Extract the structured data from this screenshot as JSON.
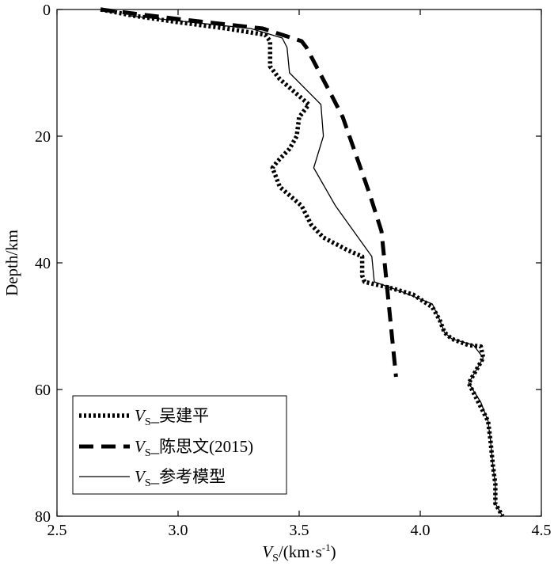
{
  "chart_data": {
    "type": "line",
    "orientation": "profile",
    "xlim": [
      2.5,
      4.5
    ],
    "ylim": [
      0,
      80
    ],
    "y_inverted": true,
    "x_ticks": [
      "2.5",
      "3.0",
      "3.5",
      "4.0",
      "4.5"
    ],
    "y_ticks": [
      "0",
      "20",
      "40",
      "60",
      "80"
    ],
    "xlabel": {
      "symbol": "V",
      "sub": "S",
      "unit": "/(km·s",
      "sup": "-1",
      "close": ")"
    },
    "ylabel": "Depth/km",
    "grid": false,
    "legend_position": "bottom-left",
    "series": [
      {
        "name_symbol": "V",
        "name_sub": "S",
        "name_text": "_吴建平",
        "style": "dotted",
        "color": "#000000",
        "points": [
          [
            2.68,
            0
          ],
          [
            2.82,
            1
          ],
          [
            3.0,
            2
          ],
          [
            3.2,
            3
          ],
          [
            3.36,
            4
          ],
          [
            3.38,
            5
          ],
          [
            3.38,
            7
          ],
          [
            3.38,
            9
          ],
          [
            3.42,
            11
          ],
          [
            3.48,
            13
          ],
          [
            3.54,
            15
          ],
          [
            3.5,
            17
          ],
          [
            3.49,
            20
          ],
          [
            3.46,
            22
          ],
          [
            3.41,
            24
          ],
          [
            3.39,
            25
          ],
          [
            3.42,
            28
          ],
          [
            3.51,
            31
          ],
          [
            3.55,
            34
          ],
          [
            3.6,
            36
          ],
          [
            3.7,
            38
          ],
          [
            3.76,
            39
          ],
          [
            3.76,
            42
          ],
          [
            3.77,
            43
          ],
          [
            3.88,
            44
          ],
          [
            3.97,
            45
          ],
          [
            4.05,
            47
          ],
          [
            4.08,
            49
          ],
          [
            4.1,
            51
          ],
          [
            4.13,
            52
          ],
          [
            4.2,
            53
          ],
          [
            4.25,
            53.2
          ],
          [
            4.26,
            55
          ],
          [
            4.23,
            57
          ],
          [
            4.2,
            59
          ],
          [
            4.24,
            62
          ],
          [
            4.28,
            65
          ],
          [
            4.29,
            68
          ],
          [
            4.3,
            72
          ],
          [
            4.31,
            75
          ],
          [
            4.31,
            78
          ],
          [
            4.34,
            80
          ]
        ]
      },
      {
        "name_symbol": "V",
        "name_sub": "S",
        "name_text": "_陈思文(2015)",
        "style": "dashed",
        "color": "#000000",
        "points": [
          [
            2.68,
            0
          ],
          [
            3.0,
            1.5
          ],
          [
            3.35,
            3
          ],
          [
            3.51,
            5
          ],
          [
            3.53,
            6
          ],
          [
            3.64,
            14
          ],
          [
            3.68,
            17
          ],
          [
            3.79,
            29
          ],
          [
            3.84,
            35
          ],
          [
            3.9,
            58
          ]
        ]
      },
      {
        "name_symbol": "V",
        "name_sub": "S",
        "name_text": "_参考模型",
        "style": "solid",
        "color": "#000000",
        "points": [
          [
            2.8,
            1
          ],
          [
            3.05,
            2
          ],
          [
            3.3,
            3
          ],
          [
            3.43,
            4.5
          ],
          [
            3.45,
            6
          ],
          [
            3.46,
            10
          ],
          [
            3.59,
            15
          ],
          [
            3.6,
            20
          ],
          [
            3.56,
            25
          ],
          [
            3.65,
            31
          ],
          [
            3.8,
            39
          ],
          [
            3.81,
            43
          ],
          [
            3.92,
            44.5
          ],
          [
            4.05,
            46.5
          ],
          [
            4.08,
            49
          ],
          [
            4.1,
            51
          ],
          [
            4.13,
            52
          ],
          [
            4.22,
            53
          ],
          [
            4.26,
            55
          ],
          [
            4.23,
            57
          ],
          [
            4.2,
            59
          ],
          [
            4.25,
            62
          ],
          [
            4.28,
            65
          ],
          [
            4.29,
            68
          ],
          [
            4.3,
            72
          ],
          [
            4.31,
            75
          ],
          [
            4.31,
            78
          ],
          [
            4.34,
            80
          ]
        ]
      }
    ]
  }
}
